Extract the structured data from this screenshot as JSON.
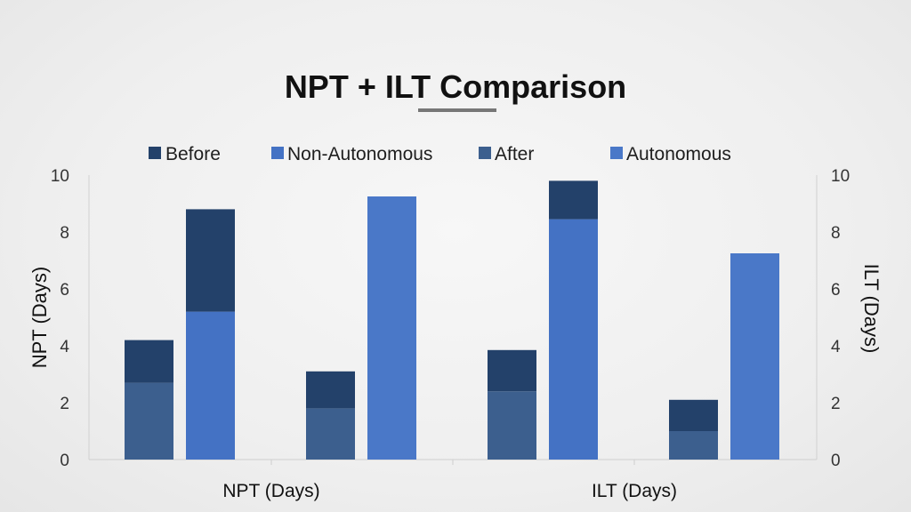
{
  "chart_data": {
    "type": "bar",
    "title": "NPT + ILT Comparison",
    "categories": [
      "NPT (Days)",
      "ILT (Days)"
    ],
    "ylabel_left": "NPT (Days)",
    "ylabel_right": "ILT (Days)",
    "ylim": [
      0,
      10
    ],
    "yticks": [
      0,
      2,
      4,
      6,
      8,
      10
    ],
    "legend": [
      "Before",
      "Non-Autonomous",
      "After",
      "Autonomous"
    ],
    "legend_position": "top",
    "grid": false,
    "colors": {
      "before": "#23416a",
      "after": "#3c5f8e",
      "non_autonomous": "#4472c4",
      "autonomous": "#4a78c8",
      "title_underline": "#777777"
    },
    "bars": [
      {
        "category": "NPT (Days)",
        "segments": [
          {
            "series": "After",
            "value": 2.7
          },
          {
            "series": "Before",
            "value": 1.5
          }
        ]
      },
      {
        "category": "NPT (Days)",
        "segments": [
          {
            "series": "Non-Autonomous",
            "value": 5.2
          },
          {
            "series": "Before",
            "value": 3.6
          }
        ]
      },
      {
        "category": "NPT (Days)",
        "segments": [
          {
            "series": "After",
            "value": 1.8
          },
          {
            "series": "Before",
            "value": 1.3
          }
        ]
      },
      {
        "category": "NPT (Days)",
        "segments": [
          {
            "series": "Autonomous",
            "value": 9.25
          }
        ]
      },
      {
        "category": "ILT (Days)",
        "segments": [
          {
            "series": "After",
            "value": 2.4
          },
          {
            "series": "Before",
            "value": 1.45
          }
        ]
      },
      {
        "category": "ILT (Days)",
        "segments": [
          {
            "series": "Non-Autonomous",
            "value": 8.45
          },
          {
            "series": "Before",
            "value": 1.35
          }
        ]
      },
      {
        "category": "ILT (Days)",
        "segments": [
          {
            "series": "After",
            "value": 1.0
          },
          {
            "series": "Before",
            "value": 1.1
          }
        ]
      },
      {
        "category": "ILT (Days)",
        "segments": [
          {
            "series": "Autonomous",
            "value": 7.25
          }
        ]
      }
    ]
  }
}
